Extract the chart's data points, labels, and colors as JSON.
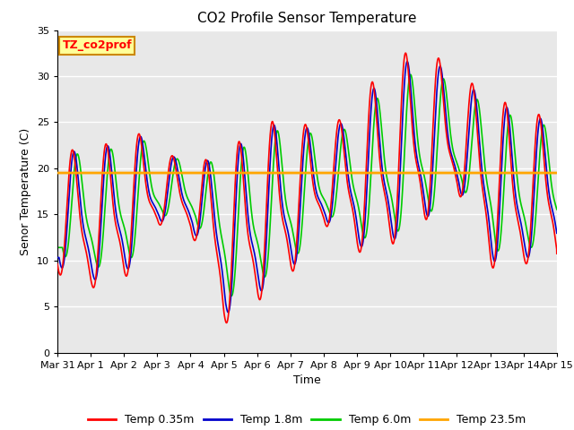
{
  "title": "CO2 Profile Sensor Temperature",
  "xlabel": "Time",
  "ylabel": "Senor Temperature (C)",
  "ylim": [
    0,
    35
  ],
  "yticks": [
    0,
    5,
    10,
    15,
    20,
    25,
    30,
    35
  ],
  "xtick_labels": [
    "Mar 31",
    "Apr 1",
    "Apr 2",
    "Apr 3",
    "Apr 4",
    "Apr 5",
    "Apr 6",
    "Apr 7",
    "Apr 8",
    "Apr 9",
    "Apr 10",
    "Apr 11",
    "Apr 12",
    "Apr 13",
    "Apr 14",
    "Apr 15"
  ],
  "line_colors": {
    "temp035": "#ff0000",
    "temp18": "#0000cc",
    "temp60": "#00cc00",
    "temp235": "#ffa500"
  },
  "line_widths": {
    "temp035": 1.2,
    "temp18": 1.2,
    "temp60": 1.2,
    "temp235": 2.0
  },
  "constant_temp235": 19.5,
  "legend_labels": [
    "Temp 0.35m",
    "Temp 1.8m",
    "Temp 6.0m",
    "Temp 23.5m"
  ],
  "annotation_text": "TZ_co2prof",
  "annotation_bg": "#ffff99",
  "annotation_border": "#cc8800",
  "plot_bg_color": "#e8e8e8",
  "grid_color": "#ffffff",
  "title_fontsize": 11,
  "axis_label_fontsize": 9,
  "tick_fontsize": 8,
  "legend_fontsize": 9,
  "day_peaks_035": [
    23.3,
    21.0,
    25.2,
    22.5,
    20.3,
    22.2,
    24.5,
    26.5,
    23.2,
    28.2,
    31.5,
    34.5,
    29.5,
    29.5,
    25.0,
    27.5
  ],
  "day_troughs_035": [
    7.0,
    5.5,
    6.0,
    13.0,
    12.5,
    1.0,
    3.5,
    6.5,
    13.0,
    9.0,
    9.5,
    12.0,
    16.5,
    7.0,
    8.0,
    8.0
  ],
  "lag_18": 0.05,
  "lag_60": 0.15,
  "damp_18": 0.93,
  "damp_60": 0.82
}
